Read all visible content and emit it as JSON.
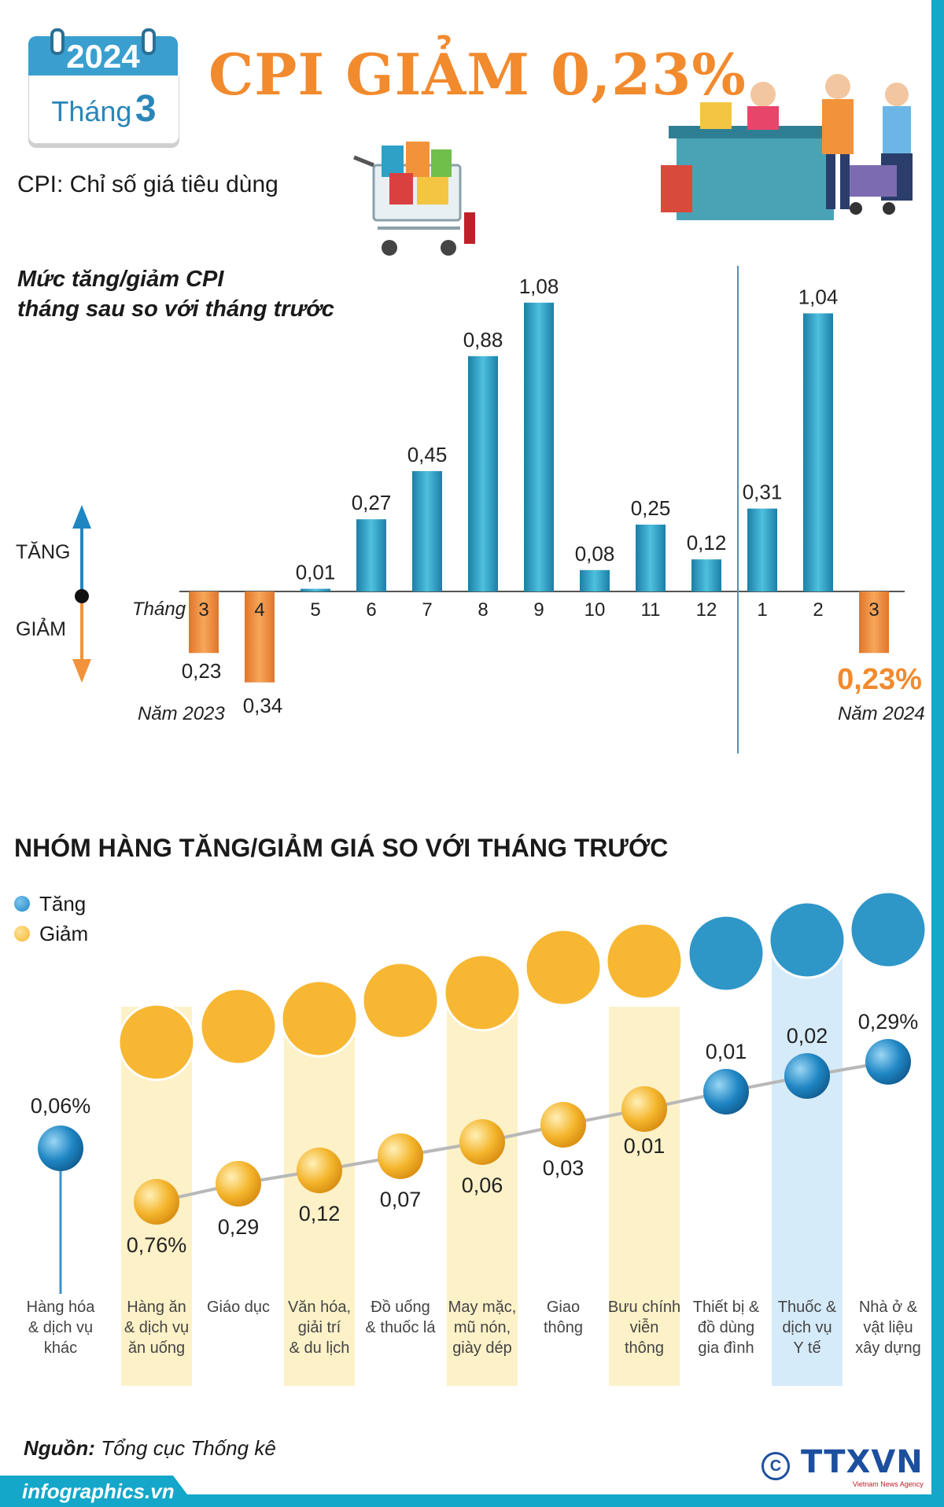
{
  "header": {
    "year": "2024",
    "month_label": "Tháng",
    "month_number": "3",
    "title": "CPI GIẢM 0,23%",
    "subtitle": "CPI: Chỉ số giá tiêu dùng"
  },
  "colors": {
    "accent_orange": "#f28a2e",
    "bar_blue": "#2fa0c6",
    "bar_orange": "#f2923a",
    "frame_teal": "#14a7c9",
    "ball_blue": "#1f86c4",
    "ball_yellow": "#f4b52c",
    "column_yellow": "#fdf1c8",
    "column_blue": "#d6ebfa"
  },
  "chart_data": [
    {
      "type": "bar",
      "title_lines": [
        "Mức tăng/giảm CPI",
        "tháng sau so với tháng trước"
      ],
      "axis_up_label": "TĂNG",
      "axis_down_label": "GIẢM",
      "month_prefix": "Tháng",
      "year_labels": [
        "Năm 2023",
        "Năm 2024"
      ],
      "categories": [
        "3",
        "4",
        "5",
        "6",
        "7",
        "8",
        "9",
        "10",
        "11",
        "12",
        "1",
        "2",
        "3"
      ],
      "values": [
        -0.23,
        -0.34,
        0.01,
        0.27,
        0.45,
        0.88,
        1.08,
        0.08,
        0.25,
        0.12,
        0.31,
        1.04,
        -0.23
      ],
      "value_labels": [
        "0,23",
        "0,34",
        "0,01",
        "0,27",
        "0,45",
        "0,88",
        "1,08",
        "0,08",
        "0,25",
        "0,12",
        "0,31",
        "1,04",
        "0,23"
      ],
      "highlight_label": "0,23%",
      "ylim": [
        -0.35,
        1.1
      ]
    },
    {
      "type": "scatter",
      "title": "NHÓM HÀNG TĂNG/GIẢM GIÁ SO VỚI THÁNG TRƯỚC",
      "legend": [
        {
          "name": "Tăng",
          "color": "#1f86c4"
        },
        {
          "name": "Giảm",
          "color": "#f4b52c"
        }
      ],
      "categories": [
        [
          "Hàng hóa",
          "& dịch vụ",
          "khác"
        ],
        [
          "Hàng ăn",
          "& dịch vụ",
          "ăn uống"
        ],
        [
          "Giáo dục"
        ],
        [
          "Văn hóa,",
          "giải trí",
          "& du lịch"
        ],
        [
          "Đồ uống",
          "& thuốc lá"
        ],
        [
          "May mặc,",
          "mũ nón,",
          "giày dép"
        ],
        [
          "Giao",
          "thông"
        ],
        [
          "Bưu chính",
          "viễn",
          "thông"
        ],
        [
          "Thiết bị &",
          "đồ dùng",
          "gia đình"
        ],
        [
          "Thuốc &",
          "dịch vụ",
          "Y tế"
        ],
        [
          "Nhà ở &",
          "vật liệu",
          "xây dựng"
        ]
      ],
      "values": [
        0.06,
        -0.76,
        -0.29,
        -0.12,
        -0.07,
        -0.06,
        -0.03,
        -0.01,
        0.01,
        0.02,
        0.29
      ],
      "value_labels": [
        "0,06%",
        "0,76%",
        "0,29",
        "0,12",
        "0,07",
        "0,06",
        "0,03",
        "0,01",
        "0,01",
        "0,02",
        "0,29%"
      ],
      "icons": [
        "none",
        "food-plate-icon",
        "graduation-cap-icon",
        "film-reel-icon",
        "drink-cigarette-icon",
        "shirt-shoe-icon",
        "traffic-light-icon",
        "antenna-tower-icon",
        "washing-machine-icon",
        "medicine-pill-icon",
        "house-brick-icon"
      ],
      "highlight_columns": {
        "yellow": [
          1,
          3,
          5,
          7
        ],
        "blue": [
          9
        ]
      }
    }
  ],
  "section2_title": "NHÓM HÀNG TĂNG/GIẢM GIÁ SO VỚI THÁNG TRƯỚC",
  "footer": {
    "source_label": "Nguồn:",
    "source_text": "Tổng cục Thống kê",
    "website": "infographics.vn",
    "copyright_symbol": "C",
    "agency_logo": "TTXVN",
    "agency_tagline": "Vietnam News Agency"
  }
}
